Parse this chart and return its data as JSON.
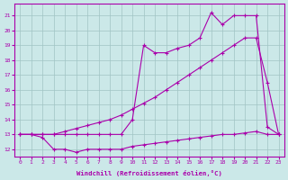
{
  "background_color": "#cbe8e8",
  "grid_color": "#a0c4c4",
  "line_color": "#aa00aa",
  "xlabel": "Windchill (Refroidissement éolien,°C)",
  "xlim": [
    -0.5,
    23.5
  ],
  "ylim": [
    11.5,
    21.8
  ],
  "yticks": [
    12,
    13,
    14,
    15,
    16,
    17,
    18,
    19,
    20,
    21
  ],
  "xticks": [
    0,
    1,
    2,
    3,
    4,
    5,
    6,
    7,
    8,
    9,
    10,
    11,
    12,
    13,
    14,
    15,
    16,
    17,
    18,
    19,
    20,
    21,
    22,
    23
  ],
  "series1_x": [
    0,
    1,
    2,
    3,
    4,
    5,
    6,
    7,
    8,
    9,
    10,
    11,
    12,
    13,
    14,
    15,
    16,
    17,
    18,
    19,
    20,
    21,
    22,
    23
  ],
  "series1_y": [
    13.0,
    13.0,
    12.8,
    12.0,
    12.0,
    11.8,
    12.0,
    12.0,
    12.0,
    12.0,
    12.2,
    12.3,
    12.4,
    12.5,
    12.6,
    12.7,
    12.8,
    12.9,
    13.0,
    13.0,
    13.1,
    13.2,
    13.0,
    13.0
  ],
  "series2_x": [
    0,
    1,
    2,
    3,
    4,
    5,
    6,
    7,
    8,
    9,
    10,
    11,
    12,
    13,
    14,
    15,
    16,
    17,
    18,
    19,
    20,
    21,
    22,
    23
  ],
  "series2_y": [
    13.0,
    13.0,
    13.0,
    13.0,
    13.0,
    13.0,
    13.0,
    13.0,
    13.0,
    13.0,
    14.0,
    19.0,
    18.5,
    18.5,
    18.8,
    19.0,
    19.5,
    21.2,
    20.4,
    21.0,
    21.0,
    21.0,
    13.5,
    13.0
  ],
  "series3_x": [
    0,
    1,
    2,
    3,
    4,
    5,
    6,
    7,
    8,
    9,
    10,
    11,
    12,
    13,
    14,
    15,
    16,
    17,
    18,
    19,
    20,
    21,
    22,
    23
  ],
  "series3_y": [
    13.0,
    13.0,
    13.0,
    13.0,
    13.2,
    13.4,
    13.6,
    13.8,
    14.0,
    14.3,
    14.7,
    15.1,
    15.5,
    16.0,
    16.5,
    17.0,
    17.5,
    18.0,
    18.5,
    19.0,
    19.5,
    19.5,
    16.5,
    13.0
  ]
}
